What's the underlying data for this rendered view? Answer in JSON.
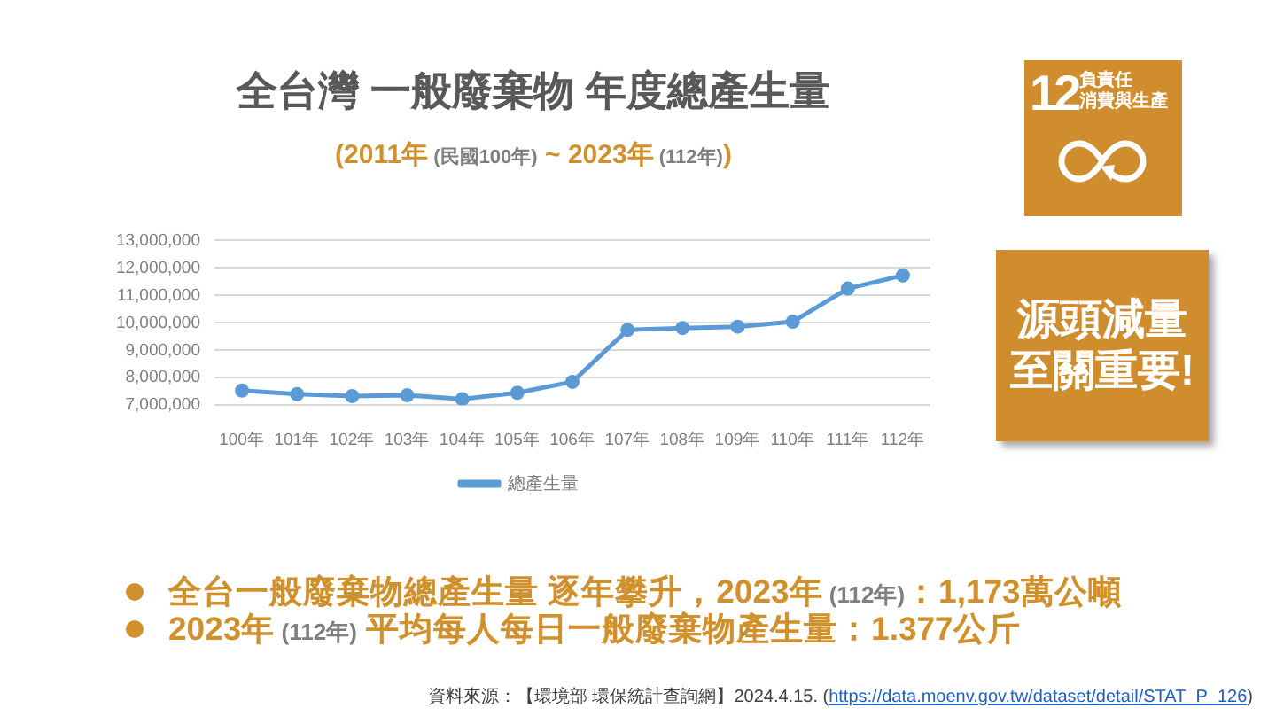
{
  "chart_data": {
    "type": "line",
    "title": "全台灣 一般廢棄物 年度總產生量",
    "subtitle": "(2011年 (民國100年) ~ 2023年 (112年))",
    "categories": [
      "100年",
      "101年",
      "102年",
      "103年",
      "104年",
      "105年",
      "106年",
      "107年",
      "108年",
      "109年",
      "110年",
      "111年",
      "112年"
    ],
    "series": [
      {
        "name": "總產生量",
        "color": "#5b9bd5",
        "values": [
          7530000,
          7400000,
          7330000,
          7360000,
          7220000,
          7450000,
          7850000,
          9740000,
          9810000,
          9860000,
          10040000,
          11250000,
          11730000
        ]
      }
    ],
    "ylim": [
      7000000,
      13000000
    ],
    "yticks": [
      {
        "value": 7000000,
        "label": "7,000,000"
      },
      {
        "value": 8000000,
        "label": "8,000,000"
      },
      {
        "value": 9000000,
        "label": "9,000,000"
      },
      {
        "value": 10000000,
        "label": "10,000,000"
      },
      {
        "value": 11000000,
        "label": "11,000,000"
      },
      {
        "value": 12000000,
        "label": "12,000,000"
      },
      {
        "value": 13000000,
        "label": "13,000,000"
      }
    ],
    "grid": "y",
    "legend": "bottom",
    "marker": "circle",
    "line_style": "solid",
    "annotations": [
      "12",
      "負責任",
      "消費與生產",
      "源頭減量",
      "至關重要!",
      "全台一般廢棄物總產生量 逐年攀升，2023年 (112年)：1,173萬公噸",
      "2023年 (112年) 平均每人每日一般廢棄物產生量：1.377公斤",
      "資料來源：【環境部 環保統計查詢網】2024.4.15. (https://data.moenv.gov.tw/dataset/detail/STAT_P_126)"
    ]
  }
}
